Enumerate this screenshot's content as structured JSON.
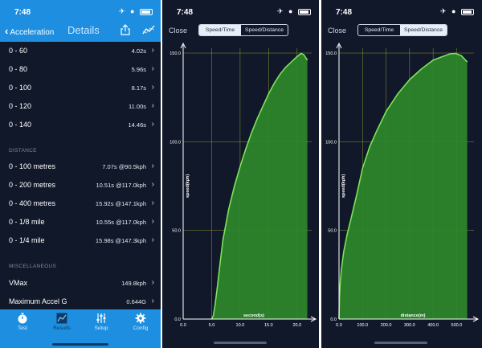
{
  "status": {
    "time": "7:48",
    "icons": "✈ ●"
  },
  "results_screen": {
    "back_label": "Acceleration",
    "title": "Details",
    "speed_rows": [
      {
        "label": "0 - 60",
        "value": "4.02s"
      },
      {
        "label": "0 - 80",
        "value": "5.96s"
      },
      {
        "label": "0 - 100",
        "value": "8.17s"
      },
      {
        "label": "0 - 120",
        "value": "11.00s"
      },
      {
        "label": "0 - 140",
        "value": "14.46s"
      }
    ],
    "distance_header": "DISTANCE",
    "distance_rows": [
      {
        "label": "0 - 100 metres",
        "value": "7.07s @90.5kph"
      },
      {
        "label": "0 - 200 metres",
        "value": "10.51s @117.0kph"
      },
      {
        "label": "0 - 400 metres",
        "value": "15.92s @147.1kph"
      },
      {
        "label": "0 - 1/8 mile",
        "value": "10.55s @117.0kph"
      },
      {
        "label": "0 - 1/4 mile",
        "value": "15.98s @147.3kph"
      }
    ],
    "misc_header": "MISCELLANEOUS",
    "misc_rows": [
      {
        "label": "VMax",
        "value": "149.8kph"
      },
      {
        "label": "Maximum Accel G",
        "value": "0.644G"
      }
    ],
    "tabs": [
      {
        "label": "Test"
      },
      {
        "label": "Results"
      },
      {
        "label": "Setup"
      },
      {
        "label": "Config"
      }
    ]
  },
  "chart_screens": {
    "close_label": "Close",
    "segment_speed_time": "Speed/Time",
    "segment_speed_distance": "Speed/Distance"
  },
  "colors": {
    "nav_blue": "#1e8fe0",
    "background": "#11182a",
    "curve": "#7ee25a",
    "fill": "#2f8a2a",
    "grid": "#8d9b2e"
  },
  "chart_data": [
    {
      "type": "area",
      "ylabel": "speed(kph)",
      "xlabel": "second(s)",
      "x_ticks": [
        "0.0",
        "5.0",
        "10.0",
        "15.0",
        "20.0"
      ],
      "y_ticks": [
        "0.0",
        "50.0",
        "100.0",
        "150.0"
      ],
      "xlim": [
        0,
        22
      ],
      "ylim": [
        0,
        150
      ],
      "x": [
        5.0,
        5.3,
        5.6,
        6.0,
        6.5,
        7.0,
        8.0,
        9.0,
        10.0,
        11.0,
        12.0,
        13.0,
        14.0,
        15.0,
        16.0,
        17.0,
        18.0,
        19.0,
        20.0,
        20.7,
        21.2,
        21.8
      ],
      "y": [
        0,
        2,
        8,
        18,
        32,
        45,
        62,
        75,
        86,
        96,
        105,
        113,
        120,
        127,
        133,
        138,
        142,
        145,
        148,
        149.8,
        149,
        146
      ]
    },
    {
      "type": "area",
      "ylabel": "speed(kph)",
      "xlabel": "distance(m)",
      "x_ticks": [
        "0.0",
        "100.0",
        "200.0",
        "300.0",
        "400.0",
        "500.0"
      ],
      "y_ticks": [
        "0.0",
        "50.0",
        "100.0",
        "150.0"
      ],
      "xlim": [
        0,
        560
      ],
      "ylim": [
        0,
        150
      ],
      "x": [
        0,
        2,
        5,
        10,
        20,
        35,
        50,
        75,
        100,
        130,
        160,
        200,
        250,
        300,
        350,
        400,
        440,
        470,
        495,
        520,
        545
      ],
      "y": [
        0,
        12,
        20,
        28,
        38,
        48,
        56,
        70,
        85,
        97,
        106,
        117,
        127,
        135,
        141,
        146,
        148,
        149.5,
        149.8,
        148.5,
        145
      ]
    }
  ]
}
